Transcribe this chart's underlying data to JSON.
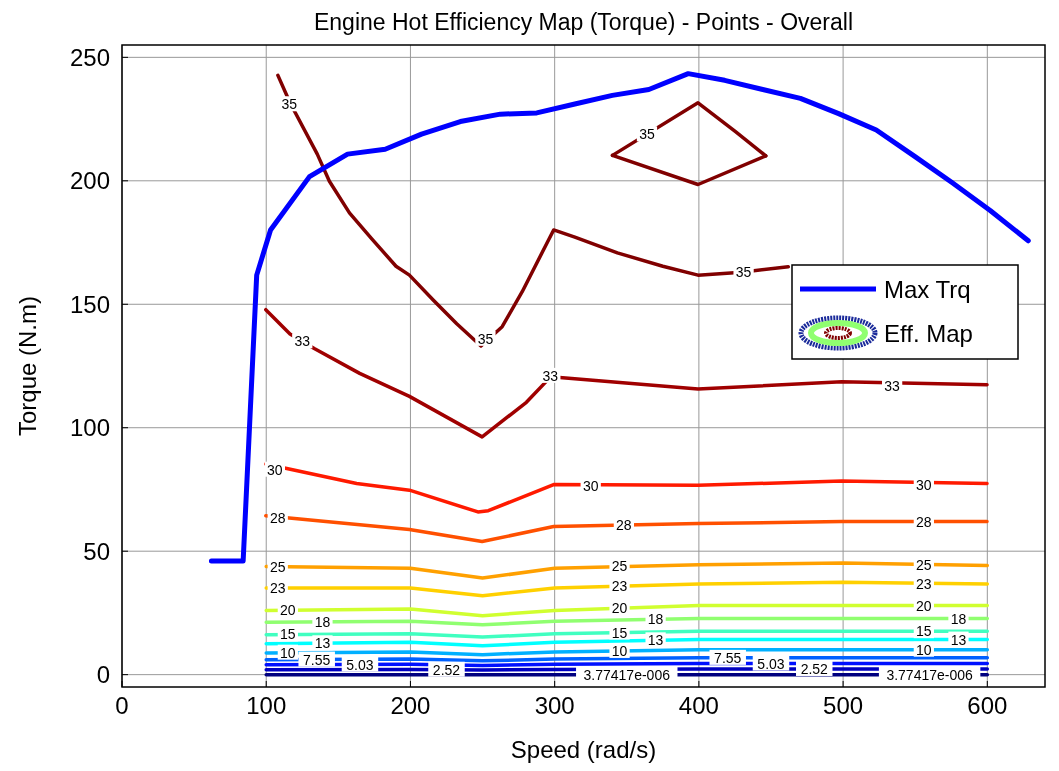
{
  "chart_data": {
    "type": "line",
    "title": "Engine Hot Efficiency Map (Torque) - Points - Overall",
    "xlabel": "Speed (rad/s)",
    "ylabel": "Torque (N.m)",
    "xlim": [
      0,
      640
    ],
    "ylim": [
      -5,
      255
    ],
    "xticks": [
      0,
      100,
      200,
      300,
      400,
      500,
      600
    ],
    "yticks": [
      0,
      50,
      100,
      150,
      200,
      250
    ],
    "grid": true,
    "legend": "right",
    "line_style": "solid",
    "marker": "none",
    "series": [
      {
        "name": "Max Trq",
        "color": "#0000ff",
        "x": [
          62,
          84,
          93.4,
          103,
          130,
          156.4,
          182.5,
          207.7,
          234.6,
          262.3,
          287.6,
          314,
          340,
          365.3,
          392.6,
          417.9,
          444.3,
          470.4,
          496.9,
          523,
          549.4,
          575.5,
          602,
          628.4
        ],
        "values": [
          46,
          46,
          161.8,
          180.1,
          201.7,
          210.8,
          212.8,
          218.9,
          224,
          227,
          227.5,
          231.1,
          234.6,
          237,
          243.4,
          240.7,
          237,
          233.4,
          227.2,
          220.6,
          210,
          199.3,
          188,
          175.7
        ]
      },
      {
        "name": "Eff. Map",
        "color": "#800000",
        "x": [
          108.1,
          116.5,
          135.4,
          143.8,
          157.7,
          173.2,
          190,
          199.3,
          216.1,
          232.1,
          248.9,
          263.6,
          277.5,
          299.3,
          314,
          343.5,
          375,
          399.4,
          429.6,
          462
        ],
        "values": [
          242.7,
          231.6,
          210.8,
          199.8,
          187,
          176.5,
          165.4,
          161.8,
          151.5,
          142.1,
          133.1,
          140.9,
          155.1,
          180.1,
          177.2,
          170.8,
          165.4,
          161.8,
          163,
          165.2
        ]
      },
      {
        "color": "#800000",
        "x": [
          340.1,
          399.4,
          425.4,
          446.4
        ],
        "values": [
          210.3,
          231.6,
          219.9,
          210.1
        ]
      },
      {
        "color": "#800000",
        "x": [
          340.1,
          399.4,
          446.4
        ],
        "values": [
          210.3,
          198.5,
          210.1
        ]
      },
      {
        "color": "#a00000",
        "x": [
          99.7,
          116.5,
          133.3,
          164.8,
          199.3,
          249.7,
          280.4,
          297.2,
          399.4,
          499,
          599.8
        ],
        "values": [
          147.8,
          138,
          132.1,
          122,
          112.7,
          96.3,
          110.3,
          120.6,
          115.7,
          118.6,
          117.4
        ]
      },
      {
        "color": "#ff1a00",
        "x": [
          99.7,
          162.7,
          199.3,
          246.8,
          254,
          299.3,
          399.4,
          499,
          599.8
        ],
        "values": [
          85.3,
          77.4,
          74.7,
          65.9,
          66.4,
          77,
          76.7,
          78.4,
          77.4
        ]
      },
      {
        "color": "#ff5000",
        "x": [
          99.7,
          199.3,
          249.7,
          299.3,
          399.4,
          499,
          599.8
        ],
        "values": [
          64.4,
          58.8,
          53.9,
          60,
          61.2,
          62,
          62
        ]
      },
      {
        "color": "#ffa000",
        "x": [
          100,
          200,
          250,
          300,
          400,
          500,
          600
        ],
        "values": [
          43.8,
          43.1,
          39.1,
          43.1,
          44.5,
          45.2,
          44.2
        ]
      },
      {
        "color": "#ffd000",
        "x": [
          100,
          200,
          250,
          300,
          400,
          500,
          600
        ],
        "values": [
          35.1,
          35.1,
          32,
          35.1,
          36.7,
          37.4,
          36.7
        ]
      },
      {
        "color": "#d0ff30",
        "x": [
          100,
          200,
          250,
          300,
          400,
          500,
          600
        ],
        "values": [
          26,
          26.6,
          23.9,
          26,
          28,
          28,
          28
        ]
      },
      {
        "color": "#90ff70",
        "x": [
          100,
          200,
          250,
          300,
          400,
          500,
          600
        ],
        "values": [
          21.2,
          21.6,
          20.2,
          21.6,
          22.7,
          22.7,
          22.7
        ]
      },
      {
        "color": "#40ffc0",
        "x": [
          100,
          200,
          250,
          300,
          400,
          500,
          600
        ],
        "values": [
          16.2,
          16.6,
          15.2,
          16.6,
          17.6,
          17.6,
          17.6
        ]
      },
      {
        "color": "#00ffff",
        "x": [
          100,
          200,
          250,
          300,
          400,
          500,
          600
        ],
        "values": [
          12.5,
          13.1,
          11.7,
          13.1,
          14.2,
          14.2,
          14.2
        ]
      },
      {
        "color": "#00b0ff",
        "x": [
          100,
          200,
          250,
          300,
          400,
          500,
          600
        ],
        "values": [
          8.8,
          9.2,
          8.1,
          9.2,
          10.1,
          10.1,
          10.1
        ]
      },
      {
        "color": "#0060ff",
        "x": [
          100,
          200,
          250,
          300,
          400,
          500,
          600
        ],
        "values": [
          6,
          6.3,
          5.6,
          6.3,
          6.8,
          6.8,
          6.8
        ]
      },
      {
        "color": "#0010ff",
        "x": [
          100,
          200,
          250,
          300,
          400,
          500,
          600
        ],
        "values": [
          4,
          4.2,
          3.7,
          4.2,
          4.5,
          4.5,
          4.5
        ]
      },
      {
        "color": "#0000c0",
        "x": [
          100,
          200,
          250,
          300,
          400,
          500,
          600
        ],
        "values": [
          2,
          2.1,
          1.9,
          2.1,
          2.3,
          2.3,
          2.3
        ]
      },
      {
        "color": "#000080",
        "x": [
          100,
          200,
          250,
          300,
          400,
          500,
          600
        ],
        "values": [
          0,
          0,
          0,
          0,
          0,
          0,
          0
        ]
      }
    ],
    "annotations": [
      {
        "text": "35",
        "x": 116,
        "y": 231
      },
      {
        "text": "35",
        "x": 252,
        "y": 136
      },
      {
        "text": "35",
        "x": 364,
        "y": 218.8
      },
      {
        "text": "35",
        "x": 431,
        "y": 163
      },
      {
        "text": "33",
        "x": 125,
        "y": 135
      },
      {
        "text": "33",
        "x": 297,
        "y": 121
      },
      {
        "text": "33",
        "x": 534,
        "y": 117
      },
      {
        "text": "30",
        "x": 106,
        "y": 83
      },
      {
        "text": "30",
        "x": 325,
        "y": 76.5
      },
      {
        "text": "30",
        "x": 556,
        "y": 77
      },
      {
        "text": "28",
        "x": 108,
        "y": 63.5
      },
      {
        "text": "28",
        "x": 348,
        "y": 60.5
      },
      {
        "text": "28",
        "x": 556,
        "y": 62
      },
      {
        "text": "25",
        "x": 108,
        "y": 43.8
      },
      {
        "text": "25",
        "x": 345,
        "y": 44
      },
      {
        "text": "25",
        "x": 556,
        "y": 44.5
      },
      {
        "text": "23",
        "x": 108,
        "y": 35
      },
      {
        "text": "23",
        "x": 345,
        "y": 35.8
      },
      {
        "text": "23",
        "x": 556,
        "y": 36.8
      },
      {
        "text": "20",
        "x": 115,
        "y": 26.1
      },
      {
        "text": "20",
        "x": 345,
        "y": 26.9
      },
      {
        "text": "20",
        "x": 556,
        "y": 28
      },
      {
        "text": "18",
        "x": 139,
        "y": 21.4
      },
      {
        "text": "18",
        "x": 370,
        "y": 22.4
      },
      {
        "text": "18",
        "x": 580,
        "y": 22.7
      },
      {
        "text": "15",
        "x": 115,
        "y": 16.3
      },
      {
        "text": "15",
        "x": 345,
        "y": 17.05
      },
      {
        "text": "15",
        "x": 556,
        "y": 17.6
      },
      {
        "text": "13",
        "x": 139,
        "y": 12.7
      },
      {
        "text": "13",
        "x": 370,
        "y": 13.9
      },
      {
        "text": "13",
        "x": 580,
        "y": 14.2
      },
      {
        "text": "10",
        "x": 115,
        "y": 8.9
      },
      {
        "text": "10",
        "x": 345,
        "y": 9.6
      },
      {
        "text": "10",
        "x": 556,
        "y": 10.1
      },
      {
        "text": "7.55",
        "x": 135,
        "y": 6.1
      },
      {
        "text": "7.55",
        "x": 420,
        "y": 6.8
      },
      {
        "text": "5.03",
        "x": 165,
        "y": 4.1
      },
      {
        "text": "5.03",
        "x": 450,
        "y": 4.5
      },
      {
        "text": "2.52",
        "x": 225,
        "y": 2
      },
      {
        "text": "2.52",
        "x": 480,
        "y": 2.3
      },
      {
        "text": "3.77417e-006",
        "x": 350,
        "y": 0
      },
      {
        "text": "3.77417e-006",
        "x": 560,
        "y": 0
      }
    ]
  }
}
